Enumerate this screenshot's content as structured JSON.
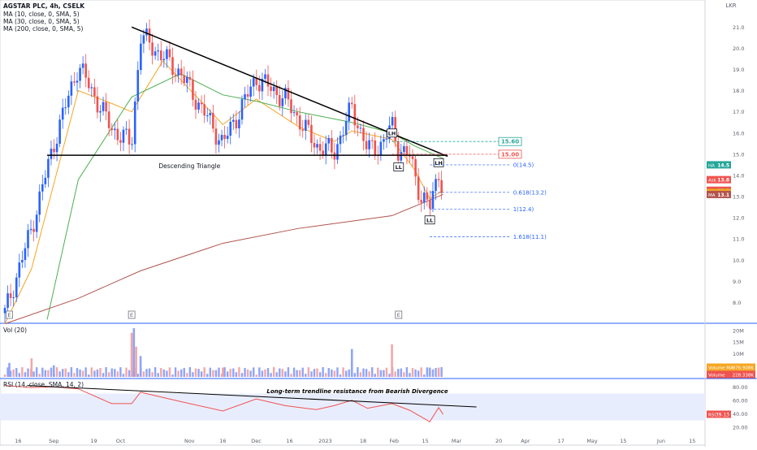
{
  "chart_data": {
    "type": "candlestick",
    "title": "AGSTAR PLC, 4h, CSELK",
    "currency": "LKR",
    "legend": [
      "MA (10, close, 0, SMA, 5)",
      "MA (30, close, 0, SMA, 5)",
      "MA (200, close, 0, SMA, 5)"
    ],
    "price_axis": {
      "ticks": [
        "21.0",
        "20.0",
        "19.0",
        "18.0",
        "17.0",
        "16.0",
        "15.0",
        "14.0",
        "13.0",
        "12.0",
        "11.0",
        "10.0",
        "9.0",
        "8.0"
      ],
      "ylim": [
        7.1,
        22.2
      ]
    },
    "time_axis": {
      "ticks": [
        "16",
        "Sep",
        "19",
        "Oct",
        "Nov",
        "16",
        "Dec",
        "16",
        "2023",
        "18",
        "Feb",
        "15",
        "Mar",
        "20",
        "Apr",
        "17",
        "May",
        "15",
        "Jun",
        "15"
      ]
    },
    "earnings_markers": [
      "E",
      "E",
      "E"
    ],
    "key_dates": {
      "first_bar": "2022-08-10",
      "today": "2023-02-23",
      "xmax": "2023-06-20",
      "sep_peak": "2022-09-12",
      "oct_peak": "2022-10-10",
      "oct_pullback": "2022-10-28",
      "nov_low": "2022-11-16",
      "dec_peak": "2022-12-01",
      "jan_low": "2023-01-05",
      "jan_high": "2023-01-13",
      "lh1": "2023-01-31",
      "ll1": "2023-02-03",
      "dip": "2023-02-10",
      "ll2": "2023-02-17",
      "lh2": "2023-02-21"
    },
    "price_path": [
      {
        "date": "2022-08-10",
        "price": 7.5
      },
      {
        "date": "2022-08-22",
        "price": 11.5
      },
      {
        "date": "2022-09-01",
        "price": 15.5
      },
      {
        "date": "2022-09-12",
        "price": 19.2
      },
      {
        "date": "2022-09-27",
        "price": 16.2
      },
      {
        "date": "2022-10-06",
        "price": 15.5
      },
      {
        "date": "2022-10-10",
        "price": 20.6
      },
      {
        "date": "2022-10-28",
        "price": 18.8
      },
      {
        "date": "2022-11-16",
        "price": 15.5
      },
      {
        "date": "2022-12-01",
        "price": 18.6
      },
      {
        "date": "2022-12-14",
        "price": 17.6
      },
      {
        "date": "2022-12-28",
        "price": 15.4
      },
      {
        "date": "2023-01-05",
        "price": 15.1
      },
      {
        "date": "2023-01-13",
        "price": 17.2
      },
      {
        "date": "2023-01-20",
        "price": 15.2
      },
      {
        "date": "2023-01-27",
        "price": 15.5
      },
      {
        "date": "2023-01-31",
        "price": 16.4
      },
      {
        "date": "2023-02-03",
        "price": 15.2
      },
      {
        "date": "2023-02-08",
        "price": 14.9
      },
      {
        "date": "2023-02-13",
        "price": 13.0
      },
      {
        "date": "2023-02-17",
        "price": 12.5
      },
      {
        "date": "2023-02-21",
        "price": 14.2
      },
      {
        "date": "2023-02-23",
        "price": 13.3
      }
    ],
    "ma_lines": [
      {
        "name": "MA 10",
        "color": "#f5a623",
        "points": [
          {
            "date": "2022-08-10",
            "price": 7.0
          },
          {
            "date": "2022-08-22",
            "price": 9.6
          },
          {
            "date": "2022-09-01",
            "price": 13.6
          },
          {
            "date": "2022-09-12",
            "price": 18.0
          },
          {
            "date": "2022-09-27",
            "price": 17.4
          },
          {
            "date": "2022-10-06",
            "price": 17.0
          },
          {
            "date": "2022-10-20",
            "price": 19.4
          },
          {
            "date": "2022-11-16",
            "price": 16.4
          },
          {
            "date": "2022-12-01",
            "price": 17.6
          },
          {
            "date": "2022-12-20",
            "price": 16.3
          },
          {
            "date": "2023-01-05",
            "price": 15.6
          },
          {
            "date": "2023-01-13",
            "price": 16.1
          },
          {
            "date": "2023-01-31",
            "price": 15.7
          },
          {
            "date": "2023-02-10",
            "price": 14.3
          },
          {
            "date": "2023-02-17",
            "price": 12.9
          },
          {
            "date": "2023-02-23",
            "price": 13.3
          }
        ]
      },
      {
        "name": "MA 30",
        "color": "#4caf50",
        "points": [
          {
            "date": "2022-08-29",
            "price": 7.2
          },
          {
            "date": "2022-09-12",
            "price": 13.8
          },
          {
            "date": "2022-10-06",
            "price": 17.7
          },
          {
            "date": "2022-10-28",
            "price": 18.8
          },
          {
            "date": "2022-11-16",
            "price": 17.8
          },
          {
            "date": "2022-12-01",
            "price": 17.5
          },
          {
            "date": "2022-12-20",
            "price": 17.0
          },
          {
            "date": "2023-01-13",
            "price": 16.5
          },
          {
            "date": "2023-01-31",
            "price": 16.0
          },
          {
            "date": "2023-02-10",
            "price": 15.4
          },
          {
            "date": "2023-02-23",
            "price": 14.8
          }
        ]
      },
      {
        "name": "MA 200",
        "color": "#b2544e",
        "points": [
          {
            "date": "2022-08-10",
            "price": 7.0
          },
          {
            "date": "2022-09-12",
            "price": 8.2
          },
          {
            "date": "2022-10-10",
            "price": 9.5
          },
          {
            "date": "2022-11-16",
            "price": 10.8
          },
          {
            "date": "2022-12-20",
            "price": 11.5
          },
          {
            "date": "2023-01-31",
            "price": 12.1
          },
          {
            "date": "2023-02-23",
            "price": 13.1
          }
        ]
      }
    ],
    "trendline": {
      "from": {
        "date": "2022-10-06",
        "price": 21.0
      },
      "to": {
        "date": "2023-02-25",
        "price": 14.9
      }
    },
    "support": {
      "price": 14.95,
      "from": "2022-08-29",
      "to": "2023-02-25"
    },
    "pattern_label": "Descending Triangle",
    "swing_labels": [
      {
        "text": "LH",
        "date": "2023-01-31",
        "price": 16.0
      },
      {
        "text": "LL",
        "date": "2023-02-03",
        "price": 14.4
      },
      {
        "text": "LL",
        "date": "2023-02-17",
        "price": 11.9
      },
      {
        "text": "LH",
        "date": "2023-02-21",
        "price": 14.6
      }
    ],
    "boxed_levels": [
      {
        "text": "15.60",
        "price": 15.6,
        "color": "#26a69a"
      },
      {
        "text": "15.00",
        "price": 15.0,
        "color": "#ef5350"
      }
    ],
    "fib_levels": [
      {
        "text": "0(14.5)",
        "price": 14.5
      },
      {
        "text": "0.618(13.2)",
        "price": 13.2
      },
      {
        "text": "1(12.4)",
        "price": 12.4
      },
      {
        "text": "1.618(11.1)",
        "price": 11.1
      }
    ],
    "price_tags": [
      {
        "label": "HA",
        "value": "14.5",
        "color": "#26a69a"
      },
      {
        "label": "Ask",
        "value": "13.8",
        "color": "#ef5350"
      },
      {
        "label": "AGSTAR.N0000",
        "value": "13.3",
        "color": "#ef5350"
      },
      {
        "label": "Bid",
        "value": "13.2",
        "color": "#131722"
      },
      {
        "label": "VHA",
        "value": "13.2",
        "color": "#f5a623"
      },
      {
        "label": "MA",
        "value": "13.1",
        "color": "#b2544e"
      }
    ],
    "volume": {
      "label": "Vol (20)",
      "axis": [
        "20M",
        "15M",
        "10M",
        "5M"
      ],
      "max": 21,
      "tags": [
        {
          "label": "Volume MA",
          "value": "976.908K",
          "color": "#f5a623"
        },
        {
          "label": "Volume",
          "value": "228.338K",
          "color": "#ef5350"
        }
      ],
      "spikes": [
        {
          "date": "2022-08-12",
          "value": 6
        },
        {
          "date": "2022-08-22",
          "value": 8
        },
        {
          "date": "2022-09-01",
          "value": 5
        },
        {
          "date": "2022-10-06",
          "value": 19
        },
        {
          "date": "2022-10-07",
          "value": 21
        },
        {
          "date": "2022-10-08",
          "value": 13
        },
        {
          "date": "2022-10-10",
          "value": 9
        },
        {
          "date": "2022-11-16",
          "value": 4
        },
        {
          "date": "2023-01-13",
          "value": 12
        },
        {
          "date": "2023-01-31",
          "value": 14
        },
        {
          "date": "2023-02-17",
          "value": 4
        },
        {
          "date": "2023-02-21",
          "value": 4
        }
      ]
    },
    "rsi": {
      "label": "RSI (14, close, SMA, 14, 2)",
      "axis": [
        "80.00",
        "60.00",
        "40.00",
        "20.00"
      ],
      "value_label": "RSI",
      "value": "39.13",
      "band": [
        30,
        70
      ],
      "annotation": "Long-term trendline resistance from Bearish Divergence",
      "trendline": {
        "from": {
          "date": "2022-08-20",
          "value": 82
        },
        "to": {
          "date": "2023-03-10",
          "value": 50
        }
      },
      "points": [
        {
          "date": "2022-08-10",
          "value": 82
        },
        {
          "date": "2022-08-22",
          "value": 79
        },
        {
          "date": "2022-09-01",
          "value": 80
        },
        {
          "date": "2022-09-12",
          "value": 77
        },
        {
          "date": "2022-09-27",
          "value": 55
        },
        {
          "date": "2022-10-06",
          "value": 55
        },
        {
          "date": "2022-10-10",
          "value": 72
        },
        {
          "date": "2022-10-28",
          "value": 58
        },
        {
          "date": "2022-11-16",
          "value": 44
        },
        {
          "date": "2022-12-01",
          "value": 62
        },
        {
          "date": "2022-12-14",
          "value": 52
        },
        {
          "date": "2022-12-28",
          "value": 46
        },
        {
          "date": "2023-01-05",
          "value": 52
        },
        {
          "date": "2023-01-13",
          "value": 60
        },
        {
          "date": "2023-01-20",
          "value": 48
        },
        {
          "date": "2023-01-31",
          "value": 55
        },
        {
          "date": "2023-02-08",
          "value": 45
        },
        {
          "date": "2023-02-17",
          "value": 28
        },
        {
          "date": "2023-02-21",
          "value": 49
        },
        {
          "date": "2023-02-23",
          "value": 39
        }
      ]
    }
  }
}
